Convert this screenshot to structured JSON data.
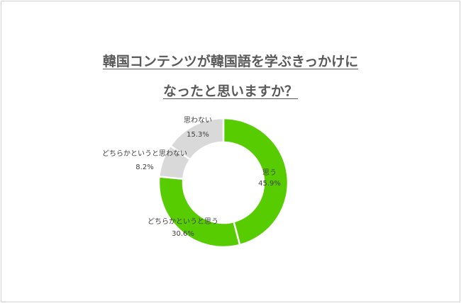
{
  "chart_data": {
    "type": "pie",
    "donut": true,
    "title_lines": [
      "韓国コンテンツが韓国語を学ぶきっかけに",
      "なったと思いますか？"
    ],
    "categories": [
      "思う",
      "どちらかというと思う",
      "どちらかというと思わない",
      "思わない"
    ],
    "values": [
      45.9,
      30.6,
      8.2,
      15.3
    ],
    "labels": [
      "45.9%",
      "30.6%",
      "8.2%",
      "15.3%"
    ],
    "colors": [
      "#57cc00",
      "#57cc00",
      "#d9d9d9",
      "#d9d9d9"
    ],
    "legend": "none"
  }
}
